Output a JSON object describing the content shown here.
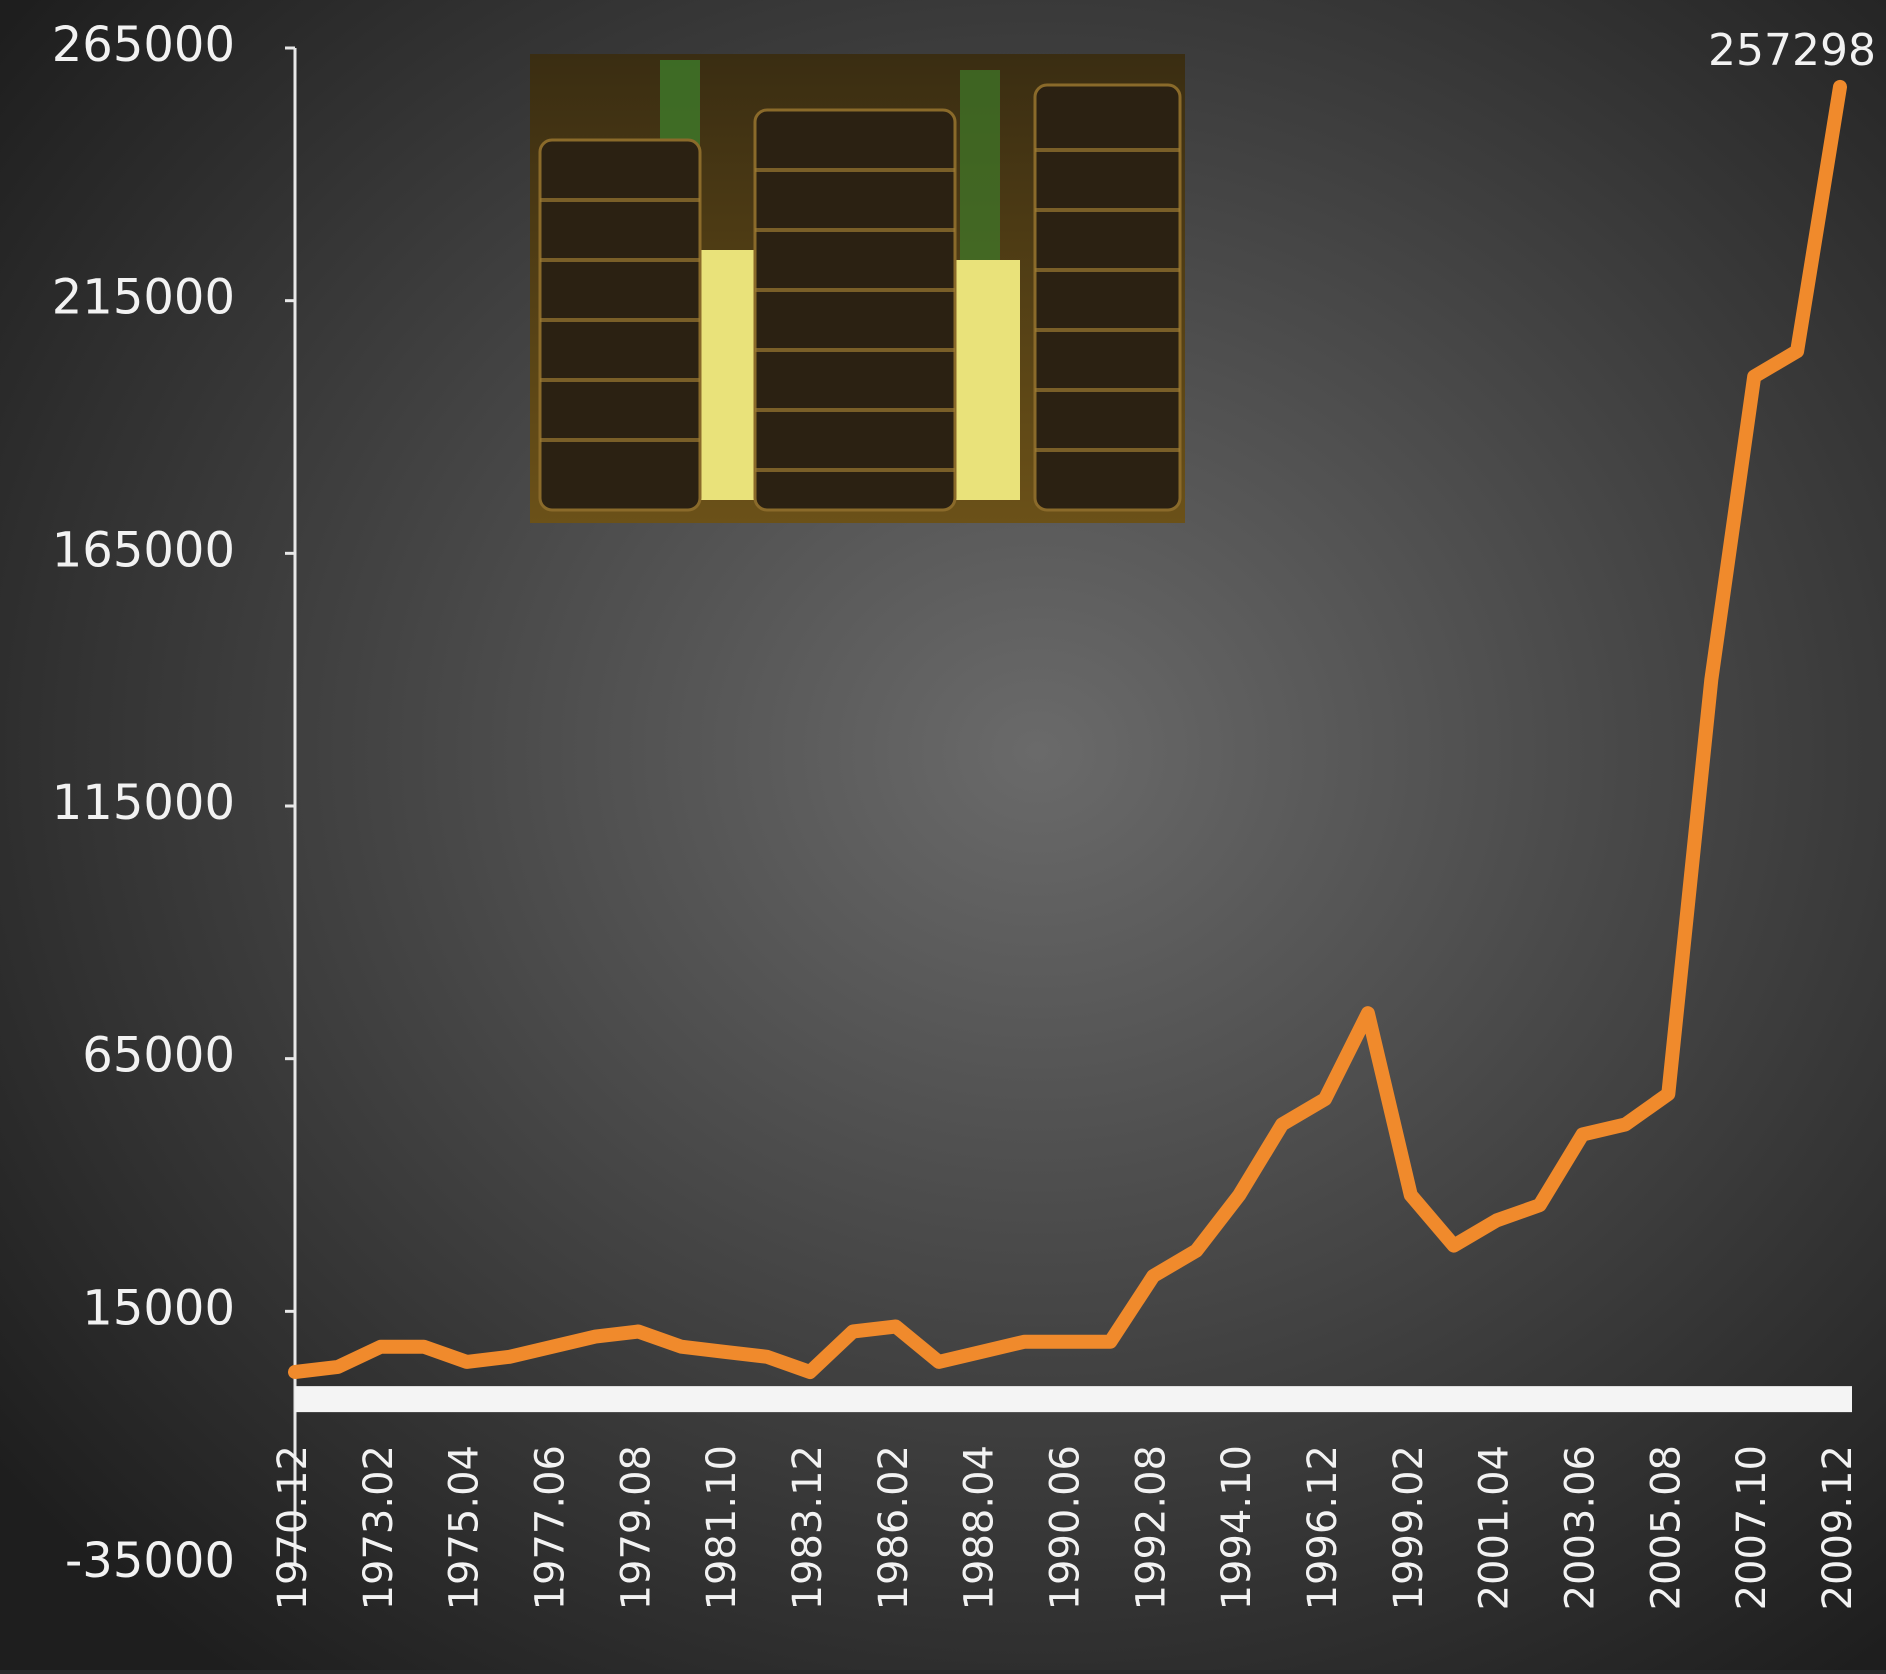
{
  "chart_data": {
    "type": "line",
    "categories": [
      "1970.12",
      null,
      "1973.02",
      null,
      "1975.04",
      null,
      "1977.06",
      null,
      "1979.08",
      null,
      "1981.10",
      null,
      "1983.12",
      null,
      "1986.02",
      null,
      "1988.04",
      null,
      "1990.06",
      null,
      "1992.08",
      null,
      "1994.10",
      null,
      "1996.12",
      null,
      "1999.02",
      null,
      "2001.04",
      null,
      "2003.06",
      null,
      "2005.08",
      null,
      "2007.10",
      null,
      "2009.12"
    ],
    "values": [
      3000,
      4000,
      8000,
      8000,
      5000,
      6000,
      8000,
      10000,
      11000,
      8000,
      7000,
      6000,
      3000,
      11000,
      12000,
      5000,
      7000,
      9000,
      9000,
      9000,
      22000,
      27000,
      38000,
      52000,
      57000,
      74000,
      38000,
      28000,
      33000,
      36000,
      50000,
      52000,
      58000,
      140000,
      200000,
      205000,
      257298
    ],
    "color": "#f08a2c",
    "ylim": [
      -35000,
      265000
    ],
    "yticks": [
      -35000,
      15000,
      65000,
      115000,
      165000,
      215000,
      265000
    ],
    "grid": false
  }
}
